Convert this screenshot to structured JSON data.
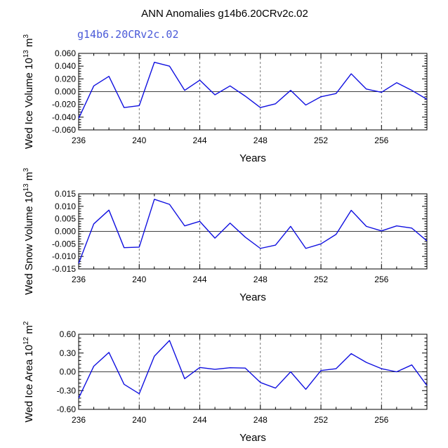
{
  "figure": {
    "title": "ANN Anomalies g14b6.20CRv2c.02",
    "subtitle": "g14b6.20CRv2c.02",
    "subtitle_color": "#4a5ad8",
    "line_color": "#1010e0"
  },
  "chart_data": [
    {
      "type": "line",
      "name": "ice-volume",
      "ylabel": "Wed Ice Volume",
      "yunits_base": "10",
      "yunits_exp": "13",
      "yunits_unit": "m",
      "yunits_unit_exp": "3",
      "xlabel": "Years",
      "xlim": [
        236,
        259
      ],
      "ylim": [
        -0.06,
        0.06
      ],
      "xticks": [
        236,
        240,
        244,
        248,
        252,
        256
      ],
      "yticks": [
        -0.06,
        -0.04,
        -0.02,
        0.0,
        0.02,
        0.04,
        0.06
      ],
      "ytick_labels": [
        "-0.060",
        "-0.040",
        "-0.020",
        "0.000",
        "0.020",
        "0.040",
        "0.060"
      ],
      "x": [
        236,
        237,
        238,
        239,
        240,
        241,
        242,
        243,
        244,
        245,
        246,
        247,
        248,
        249,
        250,
        251,
        252,
        253,
        254,
        255,
        256,
        257,
        258,
        259
      ],
      "values": [
        -0.042,
        0.009,
        0.024,
        -0.025,
        -0.022,
        0.046,
        0.04,
        0.002,
        0.018,
        -0.005,
        0.009,
        -0.007,
        -0.025,
        -0.019,
        0.002,
        -0.021,
        -0.008,
        -0.003,
        0.028,
        0.004,
        -0.001,
        0.014,
        0.002,
        -0.012
      ]
    },
    {
      "type": "line",
      "name": "snow-volume",
      "ylabel": "Wed Snow Volume",
      "yunits_base": "10",
      "yunits_exp": "13",
      "yunits_unit": "m",
      "yunits_unit_exp": "3",
      "xlabel": "Years",
      "xlim": [
        236,
        259
      ],
      "ylim": [
        -0.015,
        0.015
      ],
      "xticks": [
        236,
        240,
        244,
        248,
        252,
        256
      ],
      "yticks": [
        -0.015,
        -0.01,
        -0.005,
        0.0,
        0.005,
        0.01,
        0.015
      ],
      "ytick_labels": [
        "-0.015",
        "-0.010",
        "-0.005",
        "0.000",
        "0.005",
        "0.010",
        "0.015"
      ],
      "x": [
        236,
        237,
        238,
        239,
        240,
        241,
        242,
        243,
        244,
        245,
        246,
        247,
        248,
        249,
        250,
        251,
        252,
        253,
        254,
        255,
        256,
        257,
        258,
        259
      ],
      "values": [
        -0.0128,
        0.003,
        0.0085,
        -0.0065,
        -0.0063,
        0.0128,
        0.0108,
        0.0022,
        0.004,
        -0.0027,
        0.0033,
        -0.0023,
        -0.0068,
        -0.0055,
        0.002,
        -0.0068,
        -0.005,
        -0.0012,
        0.0084,
        0.002,
        0.0002,
        0.0022,
        0.0013,
        -0.0038
      ]
    },
    {
      "type": "line",
      "name": "ice-area",
      "ylabel": "Wed Ice Area",
      "yunits_base": "10",
      "yunits_exp": "12",
      "yunits_unit": "m",
      "yunits_unit_exp": "2",
      "xlabel": "Years",
      "xlim": [
        236,
        259
      ],
      "ylim": [
        -0.6,
        0.6
      ],
      "xticks": [
        236,
        240,
        244,
        248,
        252,
        256
      ],
      "yticks": [
        -0.6,
        -0.3,
        0.0,
        0.3,
        0.6
      ],
      "ytick_labels": [
        "-0.60",
        "-0.30",
        "0.00",
        "0.30",
        "0.60"
      ],
      "x": [
        236,
        237,
        238,
        239,
        240,
        241,
        242,
        243,
        244,
        245,
        246,
        247,
        248,
        249,
        250,
        251,
        252,
        253,
        254,
        255,
        256,
        257,
        258,
        259
      ],
      "values": [
        -0.42,
        0.09,
        0.31,
        -0.2,
        -0.35,
        0.25,
        0.5,
        -0.11,
        0.07,
        0.04,
        0.065,
        0.06,
        -0.17,
        -0.26,
        0.0,
        -0.28,
        0.02,
        0.05,
        0.29,
        0.15,
        0.05,
        0.0,
        0.11,
        -0.22
      ]
    }
  ]
}
